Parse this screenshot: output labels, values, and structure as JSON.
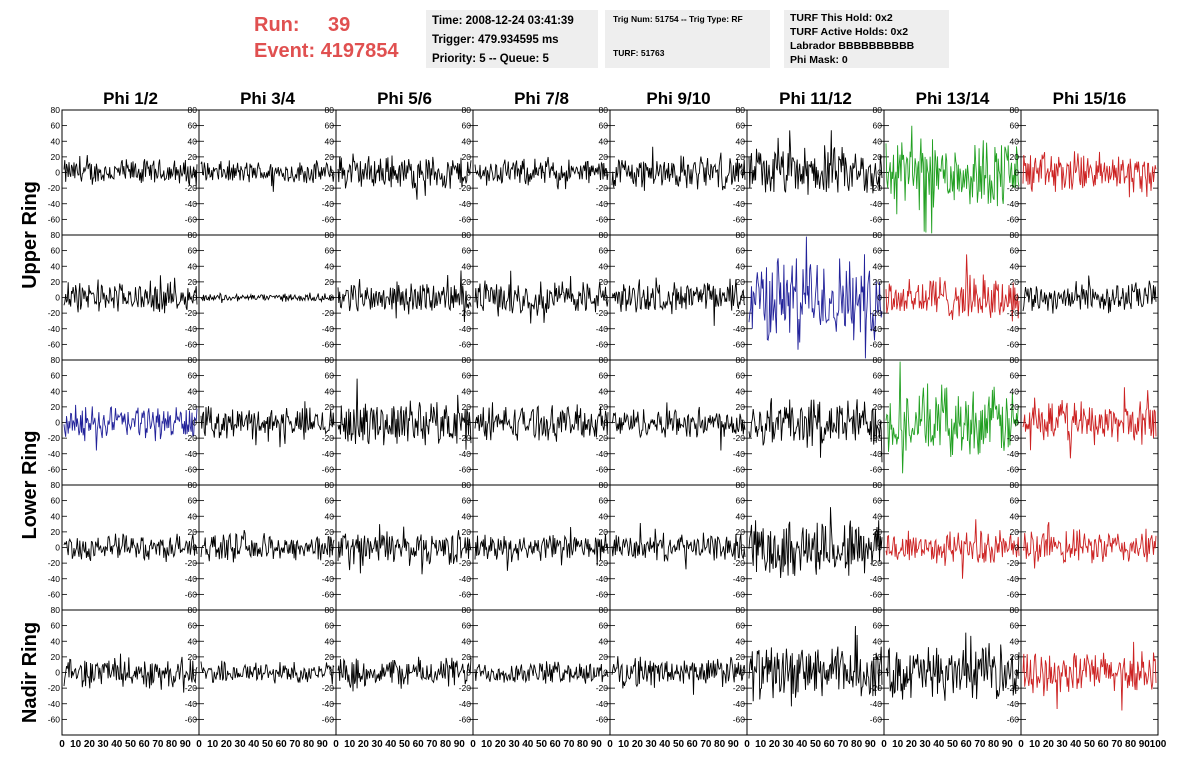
{
  "header": {
    "run_label": "Run:",
    "run_value": "39",
    "event_label": "Event:",
    "event_value": "4197854",
    "time": "Time: 2008-12-24 03:41:39",
    "trigger": "Trigger: 479.934595 ms",
    "priority": "Priority: 5 -- Queue: 5",
    "trig_num": "Trig Num: 51754 -- Trig Type: RF",
    "turf": "TURF: 51763",
    "turf_hold": "TURF This Hold: 0x2",
    "turf_active": "TURF Active Holds: 0x2",
    "labrador": "Labrador BBBBBBBBBB",
    "phi_mask": "Phi Mask: 0"
  },
  "chart_data": {
    "type": "line",
    "title": "",
    "columns": [
      "Phi 1/2",
      "Phi 3/4",
      "Phi 5/6",
      "Phi 7/8",
      "Phi 9/10",
      "Phi 11/12",
      "Phi 13/14",
      "Phi 15/16"
    ],
    "rows": [
      "Upper Ring",
      "Upper Ring",
      "Lower Ring",
      "Lower Ring",
      "Nadir Ring"
    ],
    "row_labels": [
      {
        "text": "Upper Ring"
      },
      {
        "text": "Lower Ring"
      },
      {
        "text": "Nadir Ring"
      }
    ],
    "ylim": [
      -80,
      80
    ],
    "xlim": [
      0,
      100
    ],
    "yticks": [
      -60,
      -40,
      -20,
      0,
      20,
      40,
      60,
      80
    ],
    "xticks": [
      "0",
      "10",
      "20",
      "30",
      "40",
      "50",
      "60",
      "70",
      "80",
      "90",
      "100"
    ],
    "amplitudes": [
      [
        14,
        12,
        18,
        14,
        18,
        26,
        38,
        22
      ],
      [
        16,
        4,
        16,
        18,
        16,
        44,
        24,
        16
      ],
      [
        18,
        16,
        24,
        18,
        16,
        26,
        36,
        22
      ],
      [
        14,
        14,
        18,
        14,
        14,
        32,
        18,
        18
      ],
      [
        16,
        12,
        16,
        12,
        16,
        28,
        28,
        22
      ]
    ],
    "colors": [
      [
        "#000000",
        "#000000",
        "#000000",
        "#000000",
        "#000000",
        "#000000",
        "#22a022",
        "#cc2222"
      ],
      [
        "#000000",
        "#000000",
        "#000000",
        "#000000",
        "#000000",
        "#22229a",
        "#cc2222",
        "#000000"
      ],
      [
        "#22229a",
        "#000000",
        "#000000",
        "#000000",
        "#000000",
        "#000000",
        "#22a022",
        "#cc2222"
      ],
      [
        "#000000",
        "#000000",
        "#000000",
        "#000000",
        "#000000",
        "#000000",
        "#cc2222",
        "#cc2222"
      ],
      [
        "#000000",
        "#000000",
        "#000000",
        "#000000",
        "#000000",
        "#000000",
        "#000000",
        "#cc2222"
      ]
    ],
    "samples_per_trace": 160
  }
}
